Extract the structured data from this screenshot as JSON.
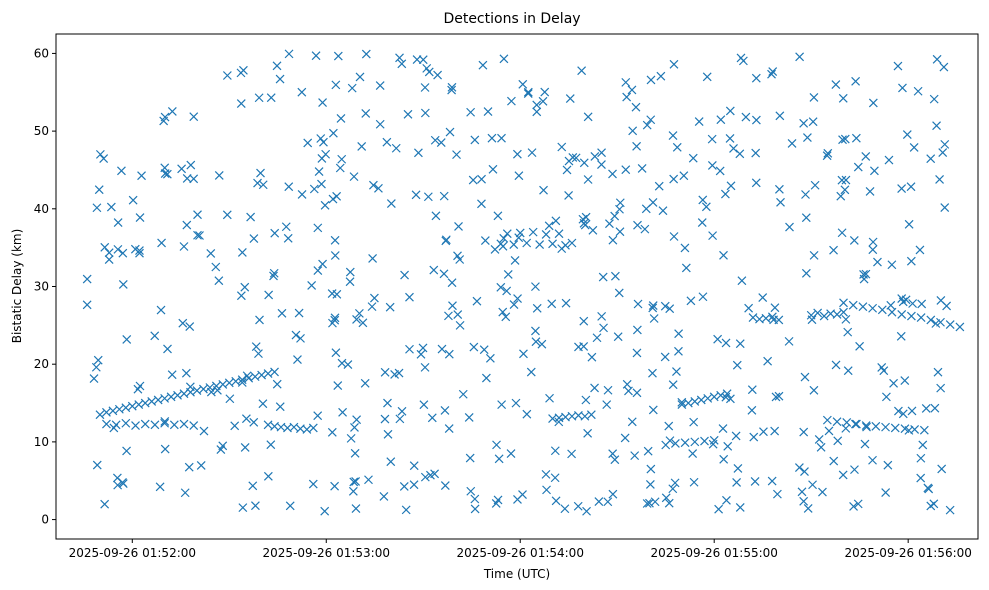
{
  "chart_data": {
    "type": "scatter",
    "title": "Detections in Delay",
    "xlabel": "Time (UTC)",
    "ylabel": "Bistatic Delay (km)",
    "x_unit": "seconds",
    "x_ticks": [
      {
        "value": 60,
        "label": "2025-09-26 01:52:00"
      },
      {
        "value": 120,
        "label": "2025-09-26 01:53:00"
      },
      {
        "value": 180,
        "label": "2025-09-26 01:54:00"
      },
      {
        "value": 240,
        "label": "2025-09-26 01:55:00"
      },
      {
        "value": 300,
        "label": "2025-09-26 01:56:00"
      }
    ],
    "y_ticks": [
      0,
      10,
      20,
      30,
      40,
      50,
      60
    ],
    "xlim": [
      36.4,
      321.6
    ],
    "ylim": [
      -2.5,
      62.5
    ],
    "marker": "x",
    "color": "#1f77b4",
    "grid": false,
    "track_points": [
      [
        50,
        13.5
      ],
      [
        52,
        13.8
      ],
      [
        54,
        14.0
      ],
      [
        56,
        14.2
      ],
      [
        58,
        14.4
      ],
      [
        60,
        14.6
      ],
      [
        62,
        14.8
      ],
      [
        64,
        15.0
      ],
      [
        66,
        15.2
      ],
      [
        68,
        15.4
      ],
      [
        70,
        15.6
      ],
      [
        72,
        15.8
      ],
      [
        74,
        16.0
      ],
      [
        76,
        16.2
      ],
      [
        78,
        16.4
      ],
      [
        80,
        16.6
      ],
      [
        82,
        16.8
      ],
      [
        84,
        17.0
      ],
      [
        86,
        17.2
      ],
      [
        88,
        17.4
      ],
      [
        90,
        17.6
      ],
      [
        92,
        17.8
      ],
      [
        94,
        18.0
      ],
      [
        96,
        18.2
      ],
      [
        98,
        18.4
      ],
      [
        100,
        18.6
      ],
      [
        102,
        18.8
      ],
      [
        104,
        19.0
      ],
      [
        52,
        12.3
      ],
      [
        55,
        12.2
      ],
      [
        58,
        12.4
      ],
      [
        61,
        12.1
      ],
      [
        64,
        12.3
      ],
      [
        67,
        12.2
      ],
      [
        70,
        12.4
      ],
      [
        73,
        12.2
      ],
      [
        76,
        12.3
      ],
      [
        79,
        12.1
      ],
      [
        102,
        12.2
      ],
      [
        104,
        12.0
      ],
      [
        106,
        11.9
      ],
      [
        108,
        11.8
      ],
      [
        110,
        11.9
      ],
      [
        112,
        11.7
      ],
      [
        114,
        11.6
      ],
      [
        116,
        11.8
      ],
      [
        174,
        35.5
      ],
      [
        176,
        36.8
      ],
      [
        178,
        35.4
      ],
      [
        180,
        36.9
      ],
      [
        182,
        35.6
      ],
      [
        184,
        37.0
      ],
      [
        186,
        35.4
      ],
      [
        188,
        36.7
      ],
      [
        190,
        35.5
      ],
      [
        192,
        36.8
      ],
      [
        194,
        35.3
      ],
      [
        196,
        35.6
      ],
      [
        190,
        13.0
      ],
      [
        192,
        13.1
      ],
      [
        194,
        13.2
      ],
      [
        196,
        13.3
      ],
      [
        198,
        13.4
      ],
      [
        200,
        13.3
      ],
      [
        202,
        13.5
      ],
      [
        230,
        14.8
      ],
      [
        232,
        15.0
      ],
      [
        234,
        15.2
      ],
      [
        236,
        15.4
      ],
      [
        238,
        15.6
      ],
      [
        240,
        15.8
      ],
      [
        242,
        16.0
      ],
      [
        244,
        16.2
      ],
      [
        225,
        9.6
      ],
      [
        228,
        9.8
      ],
      [
        231,
        9.9
      ],
      [
        234,
        10.0
      ],
      [
        237,
        10.1
      ],
      [
        240,
        10.2
      ],
      [
        252,
        26.0
      ],
      [
        254,
        25.8
      ],
      [
        256,
        25.9
      ],
      [
        258,
        26.1
      ],
      [
        260,
        25.7
      ],
      [
        270,
        26.3
      ],
      [
        272,
        26.6
      ],
      [
        274,
        26.2
      ],
      [
        276,
        26.5
      ],
      [
        278,
        26.4
      ],
      [
        280,
        26.7
      ],
      [
        275,
        12.8
      ],
      [
        278,
        12.6
      ],
      [
        281,
        12.5
      ],
      [
        284,
        12.3
      ],
      [
        287,
        12.1
      ],
      [
        290,
        12.0
      ],
      [
        293,
        11.9
      ],
      [
        296,
        11.8
      ],
      [
        299,
        11.7
      ],
      [
        302,
        11.6
      ],
      [
        305,
        11.5
      ],
      [
        280,
        27.9
      ],
      [
        283,
        27.6
      ],
      [
        286,
        27.4
      ],
      [
        289,
        27.2
      ],
      [
        292,
        27.0
      ],
      [
        295,
        26.7
      ],
      [
        298,
        26.4
      ],
      [
        301,
        26.2
      ],
      [
        304,
        26.0
      ],
      [
        307,
        25.7
      ],
      [
        310,
        25.4
      ],
      [
        313,
        25.1
      ],
      [
        316,
        24.8
      ]
    ],
    "n_scatter": 640
  }
}
